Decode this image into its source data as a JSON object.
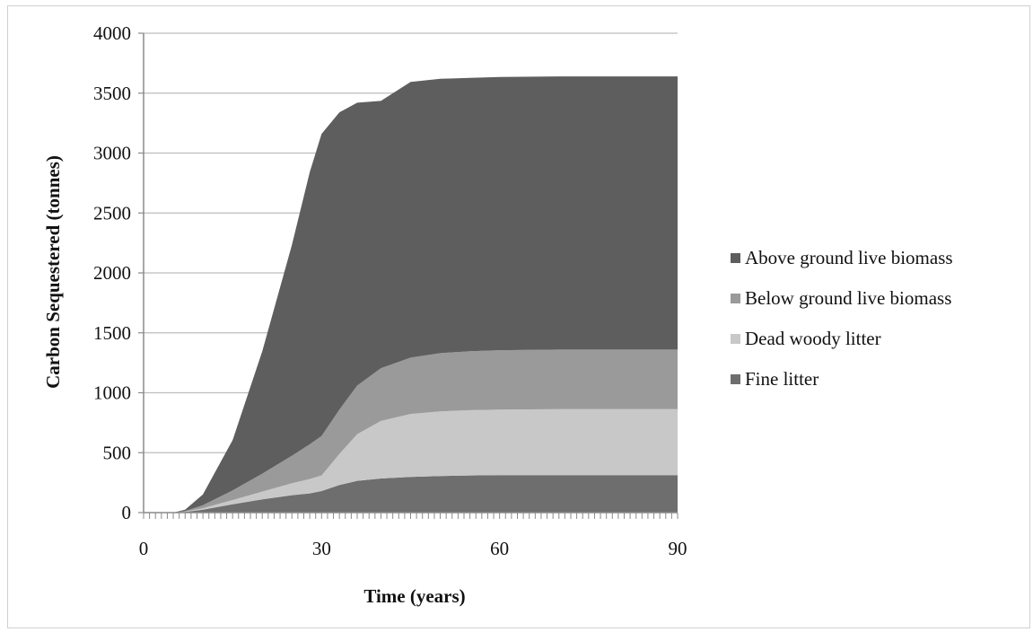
{
  "chart_data": {
    "type": "area",
    "stacked": true,
    "title": "",
    "xlabel": "Time (years)",
    "ylabel": "Carbon Sequestered (tonnes)",
    "xlim": [
      0,
      90
    ],
    "ylim": [
      0,
      4000
    ],
    "xticks": [
      0,
      30,
      60,
      90
    ],
    "yticks": [
      0,
      500,
      1000,
      1500,
      2000,
      2500,
      3000,
      3500,
      4000
    ],
    "grid": "horizontal",
    "legend_position": "right",
    "x": [
      0,
      3,
      5,
      7,
      10,
      15,
      20,
      25,
      28,
      30,
      33,
      36,
      40,
      45,
      50,
      55,
      60,
      70,
      80,
      90
    ],
    "series": [
      {
        "name": "Fine litter",
        "color": "#6e6e6e",
        "values": [
          0,
          0,
          0,
          5,
          25,
          70,
          110,
          145,
          160,
          180,
          230,
          265,
          285,
          298,
          305,
          310,
          312,
          313,
          313,
          313
        ]
      },
      {
        "name": "Dead woody litter",
        "color": "#c8c8c8",
        "values": [
          0,
          0,
          0,
          3,
          12,
          35,
          65,
          100,
          120,
          130,
          260,
          390,
          480,
          525,
          540,
          545,
          548,
          550,
          550,
          550
        ]
      },
      {
        "name": "Below ground live biomass",
        "color": "#9a9a9a",
        "values": [
          0,
          0,
          0,
          5,
          25,
          80,
          150,
          230,
          290,
          330,
          370,
          405,
          440,
          470,
          485,
          492,
          495,
          497,
          497,
          497
        ]
      },
      {
        "name": "Above ground live biomass",
        "color": "#5e5e5e",
        "values": [
          0,
          0,
          0,
          12,
          90,
          420,
          1020,
          1760,
          2270,
          2520,
          2480,
          2360,
          2230,
          2300,
          2290,
          2280,
          2280,
          2280,
          2280,
          2280
        ]
      }
    ],
    "legend_order": [
      "Above ground live biomass",
      "Below ground live biomass",
      "Dead woody litter",
      "Fine litter"
    ]
  }
}
